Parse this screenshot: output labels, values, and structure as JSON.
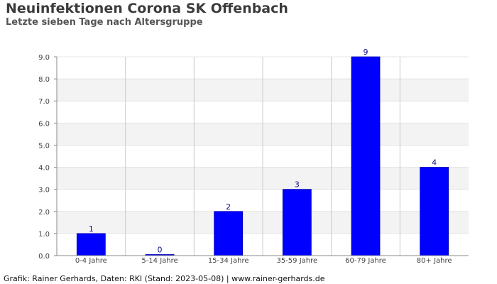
{
  "header": {
    "title": "Neuinfektionen Corona SK Offenbach",
    "subtitle": "Letzte sieben Tage nach Altersgruppe"
  },
  "footer": {
    "credit": "Grafik: Rainer Gerhards, Daten: RKI (Stand: 2023-05-08) | www.rainer-gerhards.de"
  },
  "colors": {
    "bar": "#0000ff",
    "bar_border": "#0000b0",
    "band_light": "#ffffff",
    "band_dark": "#f3f3f3",
    "data_label": "#0b0b8c"
  },
  "chart_data": {
    "type": "bar",
    "title": "Neuinfektionen Corona SK Offenbach",
    "subtitle": "Letzte sieben Tage nach Altersgruppe",
    "categories": [
      "0-4 Jahre",
      "5-14 Jahre",
      "15-34 Jahre",
      "35-59 Jahre",
      "60-79 Jahre",
      "80+ Jahre"
    ],
    "values": [
      1,
      0,
      2,
      3,
      9,
      4
    ],
    "data_labels": [
      "1",
      "0",
      "2",
      "3",
      "9",
      "4"
    ],
    "ylim": [
      0,
      9
    ],
    "yticks": [
      "0.0",
      "1.0",
      "2.0",
      "3.0",
      "4.0",
      "5.0",
      "6.0",
      "7.0",
      "8.0",
      "9.0"
    ],
    "xlabel": "",
    "ylabel": "",
    "grid": true,
    "legend": "none"
  }
}
